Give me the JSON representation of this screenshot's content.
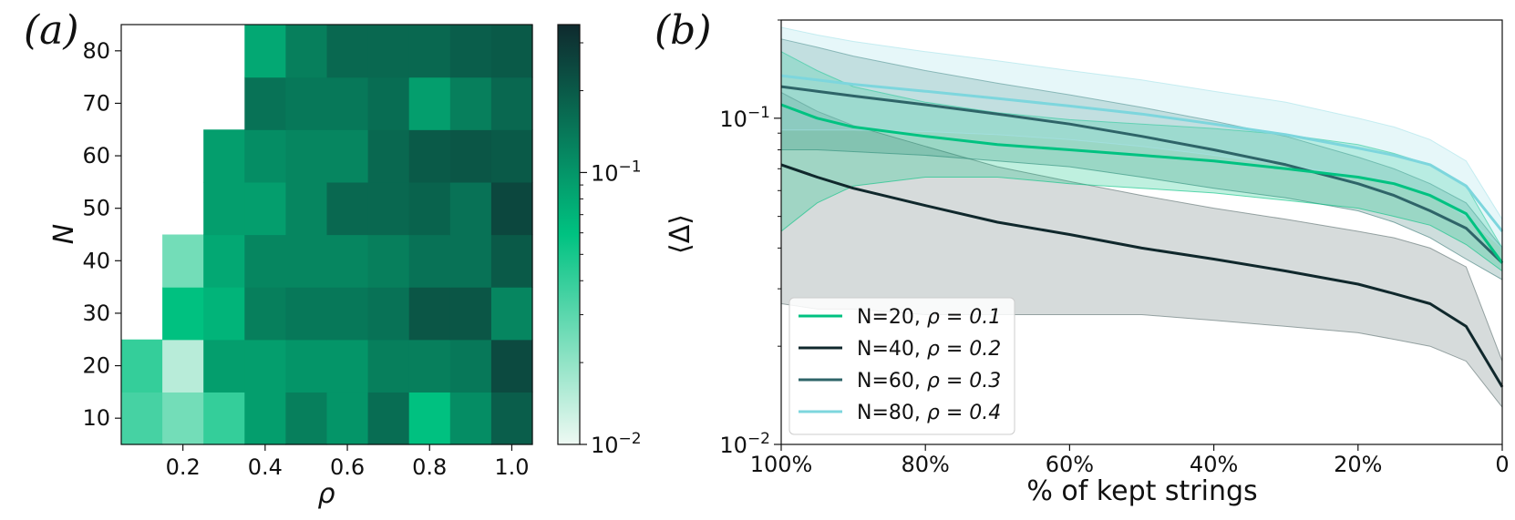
{
  "chart_data": [
    {
      "type": "heatmap",
      "panel_label": "(a)",
      "xlabel": "ρ",
      "ylabel": "N",
      "x_values": [
        0.1,
        0.2,
        0.3,
        0.4,
        0.5,
        0.6,
        0.7,
        0.8,
        0.9,
        1.0
      ],
      "x_tick_labels": [
        "0.2",
        "0.4",
        "0.6",
        "0.8",
        "1.0"
      ],
      "x_tick_values": [
        0.2,
        0.4,
        0.6,
        0.8,
        1.0
      ],
      "y_values": [
        10,
        20,
        30,
        40,
        50,
        60,
        70,
        80
      ],
      "y_tick_labels": [
        "10",
        "20",
        "30",
        "40",
        "50",
        "60",
        "70",
        "80"
      ],
      "color_scale": "log",
      "colorbar_range": [
        0.01,
        0.35
      ],
      "colorbar_ticks": [
        {
          "value": 0.01,
          "base": "10",
          "exp": "−2"
        },
        {
          "value": 0.1,
          "base": "10",
          "exp": "−1"
        }
      ],
      "cmap": [
        "#eef9f3",
        "#00c281",
        "#0f2a2e"
      ],
      "values": [
        [
          0.035,
          0.025,
          0.04,
          0.09,
          0.13,
          0.1,
          0.16,
          0.06,
          0.11,
          0.19
        ],
        [
          0.04,
          0.015,
          0.09,
          0.09,
          0.1,
          0.1,
          0.13,
          0.13,
          0.14,
          0.24
        ],
        [
          null,
          0.06,
          0.07,
          0.13,
          0.14,
          0.14,
          0.15,
          0.21,
          0.21,
          0.12
        ],
        [
          null,
          0.025,
          0.08,
          0.12,
          0.12,
          0.12,
          0.13,
          0.15,
          0.15,
          0.2
        ],
        [
          null,
          null,
          0.09,
          0.09,
          0.12,
          0.17,
          0.17,
          0.18,
          0.15,
          0.25
        ],
        [
          null,
          null,
          0.09,
          0.11,
          0.12,
          0.12,
          0.17,
          0.2,
          0.21,
          0.2
        ],
        [
          null,
          null,
          null,
          0.15,
          0.14,
          0.14,
          0.16,
          0.09,
          0.13,
          0.17
        ],
        [
          null,
          null,
          null,
          0.08,
          0.13,
          0.17,
          0.17,
          0.17,
          0.19,
          0.2
        ]
      ]
    },
    {
      "type": "line",
      "panel_label": "(b)",
      "xlabel": "% of kept strings",
      "ylabel": "⟨Δ⟩",
      "y_scale": "log",
      "ylim": [
        0.01,
        0.2
      ],
      "xlim": [
        100,
        0
      ],
      "x_tick_labels": [
        "100%",
        "80%",
        "60%",
        "40%",
        "20%",
        "0"
      ],
      "x_tick_values": [
        100,
        80,
        60,
        40,
        20,
        0
      ],
      "y_tick_labels": [
        {
          "value": 0.01,
          "base": "10",
          "exp": "−2"
        },
        {
          "value": 0.1,
          "base": "10",
          "exp": "−1"
        }
      ],
      "x": [
        100,
        95,
        90,
        80,
        70,
        60,
        50,
        40,
        30,
        20,
        15,
        10,
        5,
        0
      ],
      "legend_position": "lower-left",
      "series": [
        {
          "name": "N=20, ρ = 0.1",
          "legend_prefix": "N=20, ",
          "legend_rho": "ρ = 0.1",
          "color": "#00c281",
          "band_color": "#00c281",
          "mean": [
            0.11,
            0.1,
            0.094,
            0.088,
            0.083,
            0.08,
            0.077,
            0.074,
            0.07,
            0.066,
            0.063,
            0.058,
            0.051,
            0.036
          ],
          "upper": [
            0.16,
            0.14,
            0.125,
            0.112,
            0.104,
            0.099,
            0.096,
            0.093,
            0.089,
            0.083,
            0.078,
            0.072,
            0.062,
            0.04
          ],
          "lower": [
            0.045,
            0.055,
            0.062,
            0.066,
            0.066,
            0.063,
            0.061,
            0.059,
            0.056,
            0.053,
            0.05,
            0.047,
            0.041,
            0.034
          ]
        },
        {
          "name": "N=40, ρ = 0.2",
          "legend_prefix": "N=40, ",
          "legend_rho": "ρ = 0.2",
          "color": "#10282c",
          "band_color": "#5a6e6e",
          "mean": [
            0.072,
            0.066,
            0.061,
            0.054,
            0.048,
            0.044,
            0.04,
            0.037,
            0.034,
            0.031,
            0.029,
            0.027,
            0.023,
            0.015
          ],
          "upper": [
            0.12,
            0.105,
            0.095,
            0.082,
            0.071,
            0.064,
            0.058,
            0.053,
            0.049,
            0.045,
            0.043,
            0.04,
            0.035,
            0.018
          ],
          "lower": [
            0.027,
            0.026,
            0.026,
            0.025,
            0.025,
            0.025,
            0.025,
            0.024,
            0.023,
            0.022,
            0.021,
            0.02,
            0.018,
            0.013
          ]
        },
        {
          "name": "N=60, ρ = 0.3",
          "legend_prefix": "N=60, ",
          "legend_rho": "ρ = 0.3",
          "color": "#2e6468",
          "band_color": "#3a7a76",
          "mean": [
            0.125,
            0.121,
            0.117,
            0.11,
            0.103,
            0.096,
            0.088,
            0.08,
            0.072,
            0.063,
            0.058,
            0.052,
            0.046,
            0.036
          ],
          "upper": [
            0.175,
            0.165,
            0.155,
            0.14,
            0.128,
            0.118,
            0.108,
            0.098,
            0.088,
            0.076,
            0.07,
            0.063,
            0.055,
            0.04
          ],
          "lower": [
            0.08,
            0.08,
            0.079,
            0.077,
            0.074,
            0.071,
            0.066,
            0.061,
            0.057,
            0.052,
            0.048,
            0.043,
            0.037,
            0.032
          ]
        },
        {
          "name": "N=80, ρ = 0.4",
          "legend_prefix": "N=80, ",
          "legend_rho": "ρ = 0.4",
          "color": "#7dd6dd",
          "band_color": "#a6e3ea",
          "mean": [
            0.135,
            0.131,
            0.127,
            0.121,
            0.115,
            0.109,
            0.103,
            0.096,
            0.089,
            0.081,
            0.077,
            0.072,
            0.062,
            0.045
          ],
          "upper": [
            0.19,
            0.18,
            0.172,
            0.16,
            0.15,
            0.14,
            0.131,
            0.121,
            0.112,
            0.1,
            0.094,
            0.086,
            0.074,
            0.049
          ],
          "lower": [
            0.092,
            0.092,
            0.092,
            0.091,
            0.089,
            0.086,
            0.082,
            0.077,
            0.072,
            0.066,
            0.063,
            0.058,
            0.05,
            0.04
          ]
        }
      ]
    }
  ]
}
